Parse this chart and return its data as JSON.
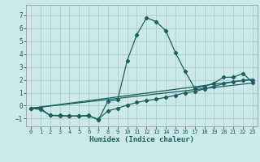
{
  "xlabel": "Humidex (Indice chaleur)",
  "bg_color": "#cce8e8",
  "grid_color": "#aacccc",
  "line_color": "#1a6060",
  "xlim": [
    -0.5,
    23.5
  ],
  "ylim": [
    -1.6,
    7.8
  ],
  "yticks": [
    -1,
    0,
    1,
    2,
    3,
    4,
    5,
    6,
    7
  ],
  "xticks": [
    0,
    1,
    2,
    3,
    4,
    5,
    6,
    7,
    8,
    9,
    10,
    11,
    12,
    13,
    14,
    15,
    16,
    17,
    18,
    19,
    20,
    21,
    22,
    23
  ],
  "spike_x": [
    0,
    1,
    2,
    3,
    4,
    5,
    6,
    7,
    8,
    9,
    10,
    11,
    12,
    13,
    14,
    15,
    16,
    17,
    18,
    19,
    20,
    21,
    22,
    23
  ],
  "spike_y": [
    -0.2,
    -0.2,
    -0.75,
    -0.75,
    -0.8,
    -0.8,
    -0.75,
    -1.1,
    0.35,
    0.45,
    3.5,
    5.5,
    6.8,
    6.5,
    5.8,
    4.1,
    2.65,
    1.35,
    1.5,
    1.75,
    2.2,
    2.2,
    2.5,
    1.8
  ],
  "gradual_x": [
    0,
    1,
    2,
    3,
    4,
    5,
    6,
    7,
    8,
    9,
    10,
    11,
    12,
    13,
    14,
    15,
    16,
    17,
    18,
    19,
    20,
    21,
    22,
    23
  ],
  "gradual_y": [
    -0.2,
    -0.3,
    -0.75,
    -0.8,
    -0.8,
    -0.8,
    -0.8,
    -1.05,
    -0.4,
    -0.2,
    0.05,
    0.25,
    0.4,
    0.5,
    0.65,
    0.8,
    1.0,
    1.1,
    1.3,
    1.5,
    1.7,
    1.85,
    1.95,
    2.0
  ],
  "line1_x": [
    0,
    23
  ],
  "line1_y": [
    -0.2,
    2.05
  ],
  "line2_x": [
    0,
    23
  ],
  "line2_y": [
    -0.2,
    1.75
  ]
}
